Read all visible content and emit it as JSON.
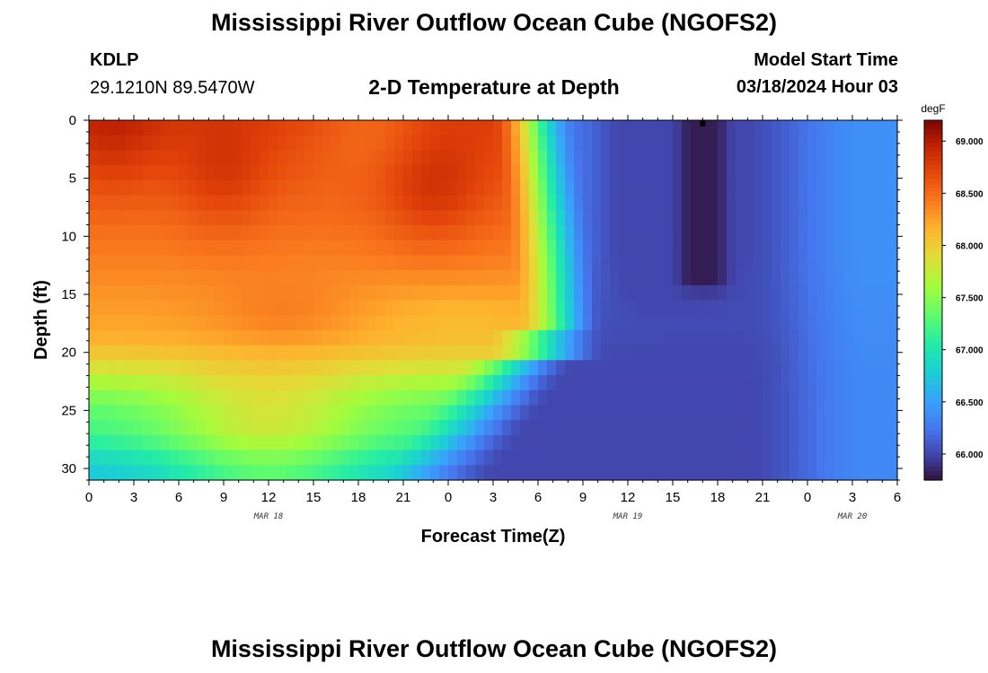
{
  "header": {
    "title": "Mississippi River Outflow Ocean Cube (NGOFS2)",
    "station_id": "KDLP",
    "station_coords": "29.1210N  89.5470W",
    "plot_title": "2-D Temperature at Depth",
    "start_label": "Model Start Time",
    "start_value": "03/18/2024 Hour 03"
  },
  "footer": {
    "title": "Mississippi River Outflow Ocean Cube (NGOFS2)"
  },
  "chart_data": {
    "type": "heatmap",
    "title": "2-D Temperature at Depth",
    "xlabel": "Forecast Time(Z)",
    "ylabel": "Depth (ft)",
    "x_ticks": [
      "0",
      "3",
      "6",
      "9",
      "12",
      "15",
      "18",
      "21",
      "0",
      "3",
      "6",
      "9",
      "12",
      "15",
      "18",
      "21",
      "0",
      "3",
      "6"
    ],
    "x_tick_hours": [
      0,
      3,
      6,
      9,
      12,
      15,
      18,
      21,
      24,
      27,
      30,
      33,
      36,
      39,
      42,
      45,
      48,
      51,
      54
    ],
    "x_range_hours": [
      0,
      54
    ],
    "date_labels": [
      {
        "text": "MAR 18",
        "hour": 12
      },
      {
        "text": "MAR 19",
        "hour": 36
      },
      {
        "text": "MAR 20",
        "hour": 51
      }
    ],
    "y_ticks": [
      0,
      5,
      10,
      15,
      20,
      25,
      30
    ],
    "y_range": [
      0,
      31
    ],
    "y_inverted": true,
    "colorbar": {
      "unit": "degF",
      "min": 65.75,
      "max": 69.2,
      "ticks": [
        "69.000",
        "68.500",
        "68.000",
        "67.500",
        "67.000",
        "66.500",
        "66.000"
      ],
      "tick_values": [
        69.0,
        68.5,
        68.0,
        67.5,
        67.0,
        66.5,
        66.0
      ],
      "colormap": "turbo"
    },
    "grid": false,
    "marker": {
      "hour": 41,
      "depth": 0.2
    },
    "field": {
      "description_hint": "temperature (degF) by forecast hour and depth",
      "time_hours": [
        0,
        54
      ],
      "depth_ft": [
        0,
        31
      ]
    }
  }
}
